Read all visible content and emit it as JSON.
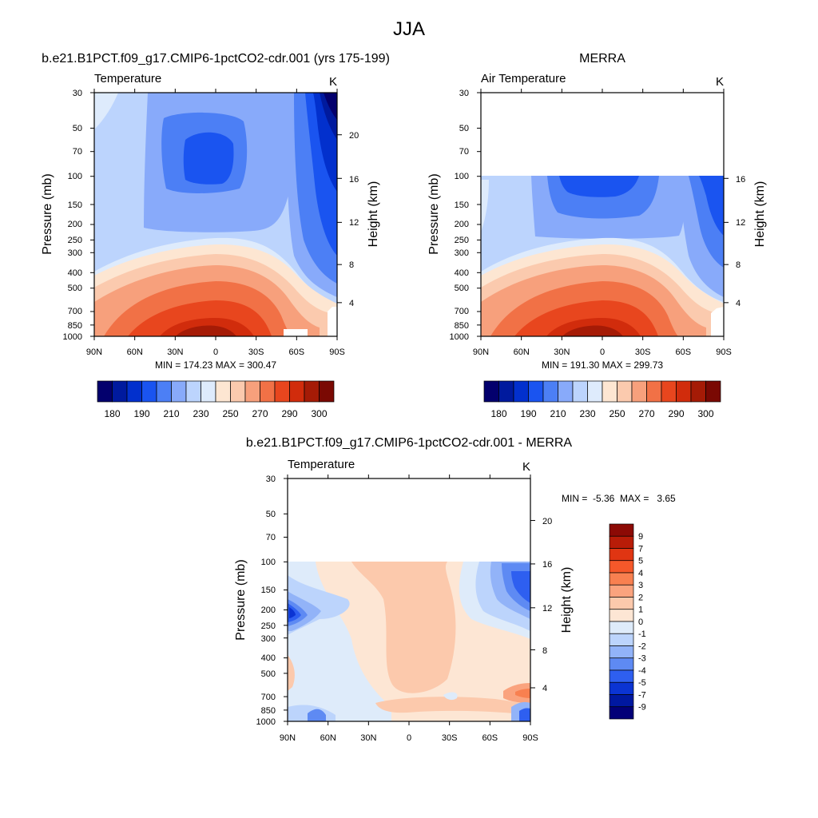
{
  "page": {
    "title": "JJA",
    "colors": {
      "background": "#ffffff",
      "text": "#000000",
      "frame": "#000000"
    }
  },
  "chart_data": [
    {
      "type": "heatmap",
      "id": "model",
      "title": "b.e21.B1PCT.f09_g17.CMIP6-1pctCO2-cdr.001 (yrs 175-199)",
      "subtitle_left": "Temperature",
      "units": "K",
      "xlabel": "",
      "ylabel": "Pressure (mb)",
      "ylabel_right": "Height (km)",
      "x_ticks": [
        "90N",
        "60N",
        "30N",
        "0",
        "30S",
        "60S",
        "90S"
      ],
      "x_range": [
        90,
        -90
      ],
      "y_ticks": [
        "30",
        "50",
        "70",
        "100",
        "150",
        "200",
        "250",
        "300",
        "400",
        "500",
        "700",
        "850",
        "1000"
      ],
      "y_range_mb": [
        30,
        1000
      ],
      "height_ticks": [
        "4",
        "8",
        "12",
        "16",
        "20"
      ],
      "stats": "MIN = 174.23  MAX = 300.47",
      "colorbar": {
        "orientation": "horizontal",
        "labels": [
          "180",
          "190",
          "210",
          "230",
          "250",
          "270",
          "290",
          "300"
        ],
        "colors": [
          "#03006d",
          "#001a9e",
          "#0230cd",
          "#1a54f0",
          "#4c7ff5",
          "#88aafa",
          "#bcd4fd",
          "#deebfc",
          "#fde6d2",
          "#fbcaae",
          "#f7a07c",
          "#f17146",
          "#e8461e",
          "#d12c0c",
          "#a51b06",
          "#7a0903"
        ]
      },
      "data_top_mb": 30
    },
    {
      "type": "heatmap",
      "id": "merra",
      "title": "MERRA",
      "subtitle_left": "Air Temperature",
      "units": "K",
      "xlabel": "",
      "ylabel": "Pressure (mb)",
      "ylabel_right": "Height (km)",
      "x_ticks": [
        "90N",
        "60N",
        "30N",
        "0",
        "30S",
        "60S",
        "90S"
      ],
      "x_range": [
        90,
        -90
      ],
      "y_ticks": [
        "30",
        "50",
        "70",
        "100",
        "150",
        "200",
        "250",
        "300",
        "400",
        "500",
        "700",
        "850",
        "1000"
      ],
      "y_range_mb": [
        30,
        1000
      ],
      "height_ticks": [
        "4",
        "8",
        "12",
        "16"
      ],
      "stats": "MIN = 191.30  MAX = 299.73",
      "colorbar": {
        "orientation": "horizontal",
        "labels": [
          "180",
          "190",
          "210",
          "230",
          "250",
          "270",
          "290",
          "300"
        ],
        "colors": [
          "#03006d",
          "#001a9e",
          "#0230cd",
          "#1a54f0",
          "#4c7ff5",
          "#88aafa",
          "#bcd4fd",
          "#deebfc",
          "#fde6d2",
          "#fbcaae",
          "#f7a07c",
          "#f17146",
          "#e8461e",
          "#d12c0c",
          "#a51b06",
          "#7a0903"
        ]
      },
      "data_top_mb": 100
    },
    {
      "type": "heatmap",
      "id": "diff",
      "title": "b.e21.B1PCT.f09_g17.CMIP6-1pctCO2-cdr.001 - MERRA",
      "subtitle_left": "Temperature",
      "units": "K",
      "xlabel": "",
      "ylabel": "Pressure (mb)",
      "ylabel_right": "Height (km)",
      "x_ticks": [
        "90N",
        "60N",
        "30N",
        "0",
        "30S",
        "60S",
        "90S"
      ],
      "x_range": [
        90,
        -90
      ],
      "y_ticks": [
        "30",
        "50",
        "70",
        "100",
        "150",
        "200",
        "250",
        "300",
        "400",
        "500",
        "700",
        "850",
        "1000"
      ],
      "y_range_mb": [
        30,
        1000
      ],
      "height_ticks": [
        "4",
        "8",
        "12",
        "16",
        "20"
      ],
      "stats": "MIN =  -5.36  MAX =   3.65",
      "colorbar": {
        "orientation": "vertical",
        "labels": [
          "9",
          "7",
          "5",
          "4",
          "3",
          "2",
          "1",
          "0",
          "-1",
          "-2",
          "-3",
          "-4",
          "-5",
          "-7",
          "-9"
        ],
        "colors": [
          "#8c0a05",
          "#b81c08",
          "#e03512",
          "#f5582a",
          "#f88050",
          "#faa37e",
          "#fcc9ac",
          "#fde6d4",
          "#deebfa",
          "#bcd4fc",
          "#92b3f8",
          "#5e8af3",
          "#2e5ff0",
          "#0b34d3",
          "#0018a0",
          "#020078"
        ]
      },
      "data_top_mb": 100
    }
  ]
}
